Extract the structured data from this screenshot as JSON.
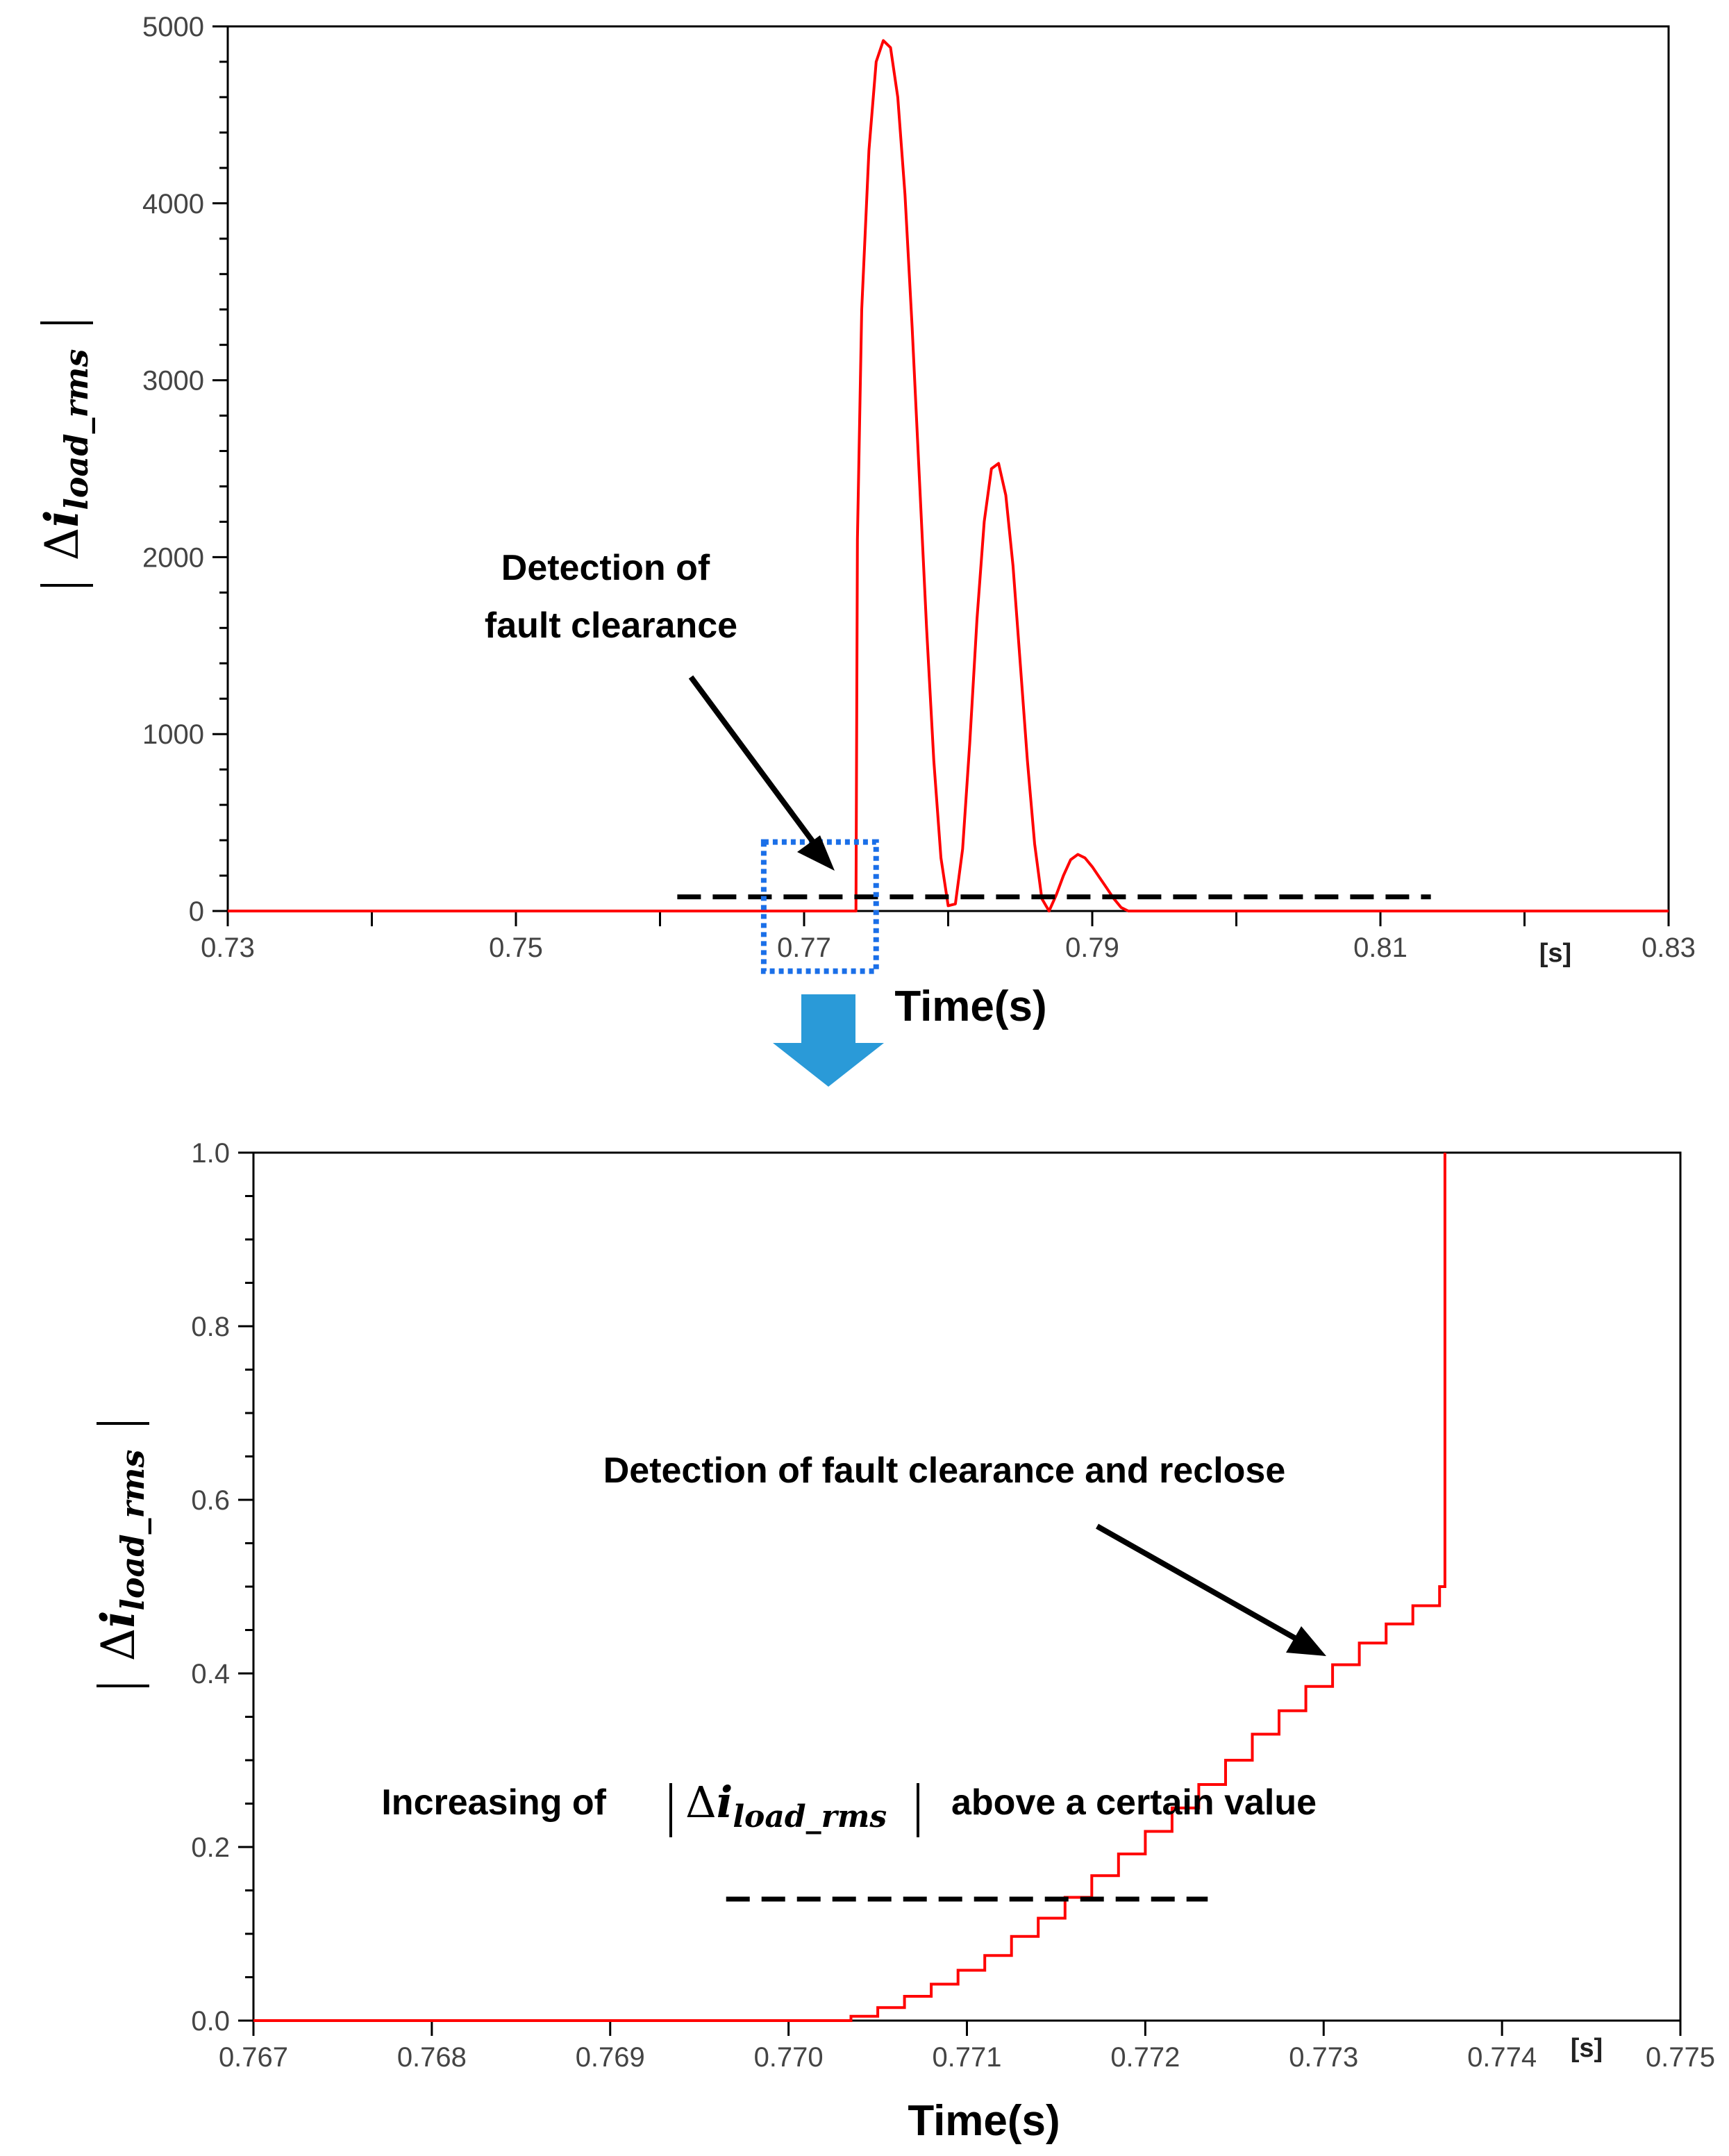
{
  "chart_data": [
    {
      "type": "line",
      "xlim": [
        0.73,
        0.83
      ],
      "ylim": [
        0,
        5000
      ],
      "x_ticks": [
        "0.73",
        "0.75",
        "0.77",
        "0.79",
        "0.81",
        "0.83"
      ],
      "y_ticks": [
        "0",
        "1000",
        "2000",
        "3000",
        "4000",
        "5000"
      ],
      "x_unit": "[s]",
      "xlabel": "Time(s)",
      "ylabel": {
        "delta": "Δ",
        "main": "i",
        "sub": "load_rms"
      },
      "annotation": {
        "line1": "Detection of",
        "line2": "fault clearance"
      },
      "threshold": {
        "value": 80,
        "x_start": 0.7612,
        "x_end": 0.8135
      },
      "zoom_box": {
        "x": [
          0.7672,
          0.775
        ],
        "y": [
          -340,
          390
        ]
      },
      "series": [
        {
          "color": "#ff0000",
          "x": [
            0.73,
            0.7736,
            0.7737,
            0.774,
            0.7745,
            0.775,
            0.7755,
            0.776,
            0.7765,
            0.777,
            0.7775,
            0.778,
            0.7785,
            0.779,
            0.7795,
            0.78,
            0.7805,
            0.781,
            0.7815,
            0.782,
            0.7825,
            0.783,
            0.7835,
            0.784,
            0.7845,
            0.785,
            0.7855,
            0.786,
            0.7865,
            0.787,
            0.7875,
            0.788,
            0.7885,
            0.789,
            0.7895,
            0.79,
            0.7905,
            0.791,
            0.7915,
            0.792,
            0.7925,
            0.793,
            0.7935,
            0.794,
            0.795,
            0.796,
            0.797,
            0.7975,
            0.798,
            0.83
          ],
          "y": [
            0,
            0,
            2100,
            3400,
            4300,
            4800,
            4920,
            4880,
            4600,
            4050,
            3300,
            2450,
            1600,
            850,
            300,
            30,
            40,
            350,
            950,
            1650,
            2200,
            2500,
            2530,
            2350,
            1950,
            1400,
            850,
            380,
            70,
            0,
            90,
            200,
            290,
            320,
            300,
            250,
            190,
            130,
            70,
            20,
            0,
            0,
            0,
            0,
            0,
            0,
            0,
            0,
            0,
            0
          ]
        }
      ]
    },
    {
      "type": "line",
      "xlim": [
        0.767,
        0.775
      ],
      "ylim": [
        0,
        1.0
      ],
      "x_ticks": [
        "0.767",
        "0.768",
        "0.769",
        "0.770",
        "0.771",
        "0.772",
        "0.773",
        "0.774",
        "0.775"
      ],
      "y_ticks": [
        "0.0",
        "0.2",
        "0.4",
        "0.6",
        "0.8",
        "1.0"
      ],
      "x_unit": "[s]",
      "xlabel": "Time(s)",
      "ylabel": {
        "delta": "Δ",
        "main": "i",
        "sub": "load_rms"
      },
      "annotation_top": "Detection of fault clearance and reclose",
      "annotation_mid": {
        "before": "Increasing of",
        "after": "above a certain value"
      },
      "threshold": {
        "value": 0.14,
        "x_start": 0.76965,
        "x_end": 0.77235
      },
      "series": [
        {
          "color": "#ff0000",
          "x": [
            0.767,
            0.77035,
            0.7705,
            0.77065,
            0.7708,
            0.77095,
            0.7711,
            0.77125,
            0.7714,
            0.77155,
            0.7717,
            0.77185,
            0.772,
            0.77215,
            0.7723,
            0.77245,
            0.7726,
            0.77275,
            0.7729,
            0.77305,
            0.7732,
            0.77335,
            0.7735,
            0.77365,
            0.77368
          ],
          "y": [
            0,
            0.005,
            0.015,
            0.028,
            0.042,
            0.058,
            0.075,
            0.097,
            0.118,
            0.142,
            0.167,
            0.192,
            0.218,
            0.245,
            0.272,
            0.3,
            0.33,
            0.357,
            0.385,
            0.41,
            0.435,
            0.457,
            0.478,
            0.5,
            1.0
          ]
        }
      ]
    }
  ],
  "colors": {
    "series": "#ff0000",
    "zoom_box": "#1a6fe8",
    "arrow": "#2a9ad8",
    "axis": "#000000"
  }
}
